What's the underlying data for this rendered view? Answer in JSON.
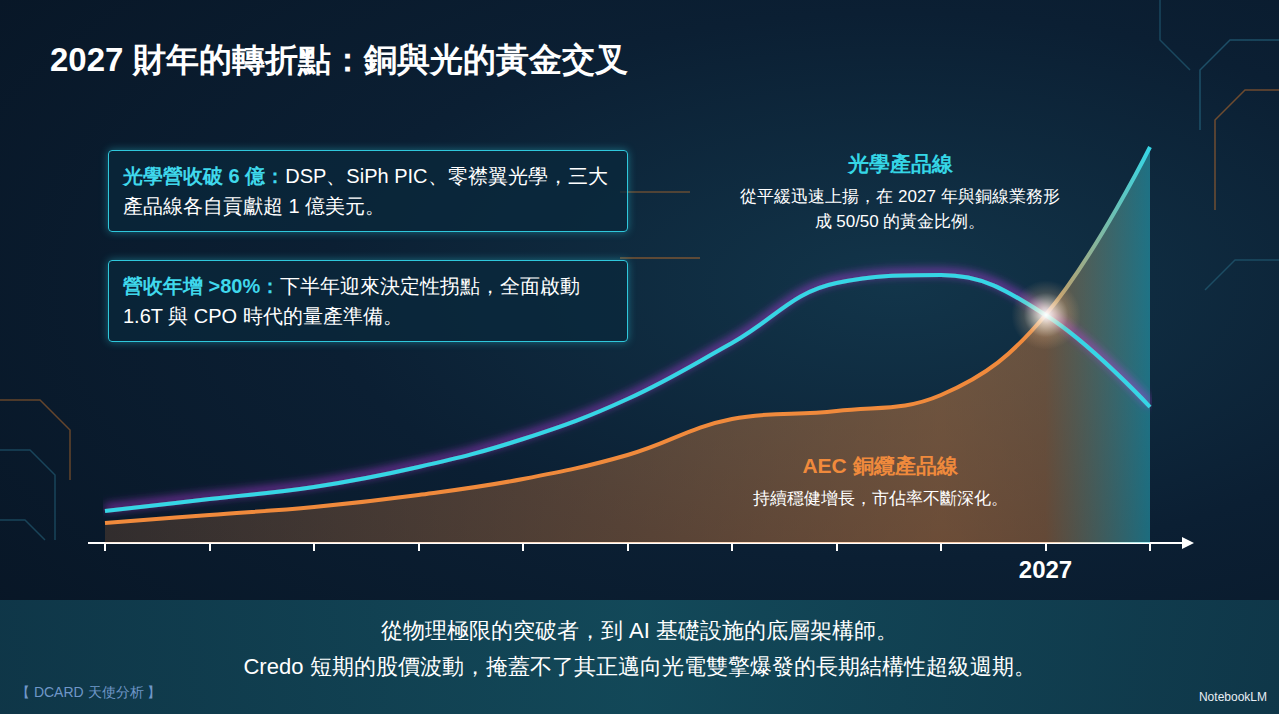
{
  "title": "2027 財年的轉折點：銅與光的黃金交叉",
  "callouts": [
    {
      "heading": "光學營收破 6 億：",
      "text": "DSP、SiPh PIC、零襟翼光學，三大產品線各自貢獻超 1 億美元。"
    },
    {
      "heading": "營收年增 >80%：",
      "text": "下半年迎來決定性拐點，全面啟動 1.6T 與 CPO 時代的量產準備。"
    }
  ],
  "chart_data": {
    "type": "line",
    "categories": [
      null,
      null,
      null,
      null,
      null,
      null,
      null,
      null,
      null,
      "2027",
      null
    ],
    "ylim": [
      0,
      100
    ],
    "tick_labels": "x",
    "grid": false,
    "series": [
      {
        "name": "光學產品線",
        "note": "從平緩迅速上揚，在 2027 年與銅線業務形成 50/50 的黃金比例。",
        "type": "line",
        "color": "#35d6e6",
        "values": [
          8,
          11,
          14,
          19,
          26,
          36,
          50,
          65,
          67,
          57,
          34
        ]
      },
      {
        "name": "AEC 銅纜產品線",
        "note": "持續穩健增長，市佔率不斷深化。",
        "type": "area",
        "color": "#f08a3c",
        "values": [
          5,
          7,
          9,
          12,
          16,
          22,
          31,
          33,
          37,
          57,
          99
        ]
      }
    ]
  },
  "footer": [
    "從物理極限的突破者，到 AI 基礎設施的底層架構師。",
    "Credo 短期的股價波動，掩蓋不了其正邁向光電雙擎爆發的長期結構性超級週期。"
  ],
  "source": "【 DCARD 天使分析 】",
  "watermark": "NotebookLM"
}
